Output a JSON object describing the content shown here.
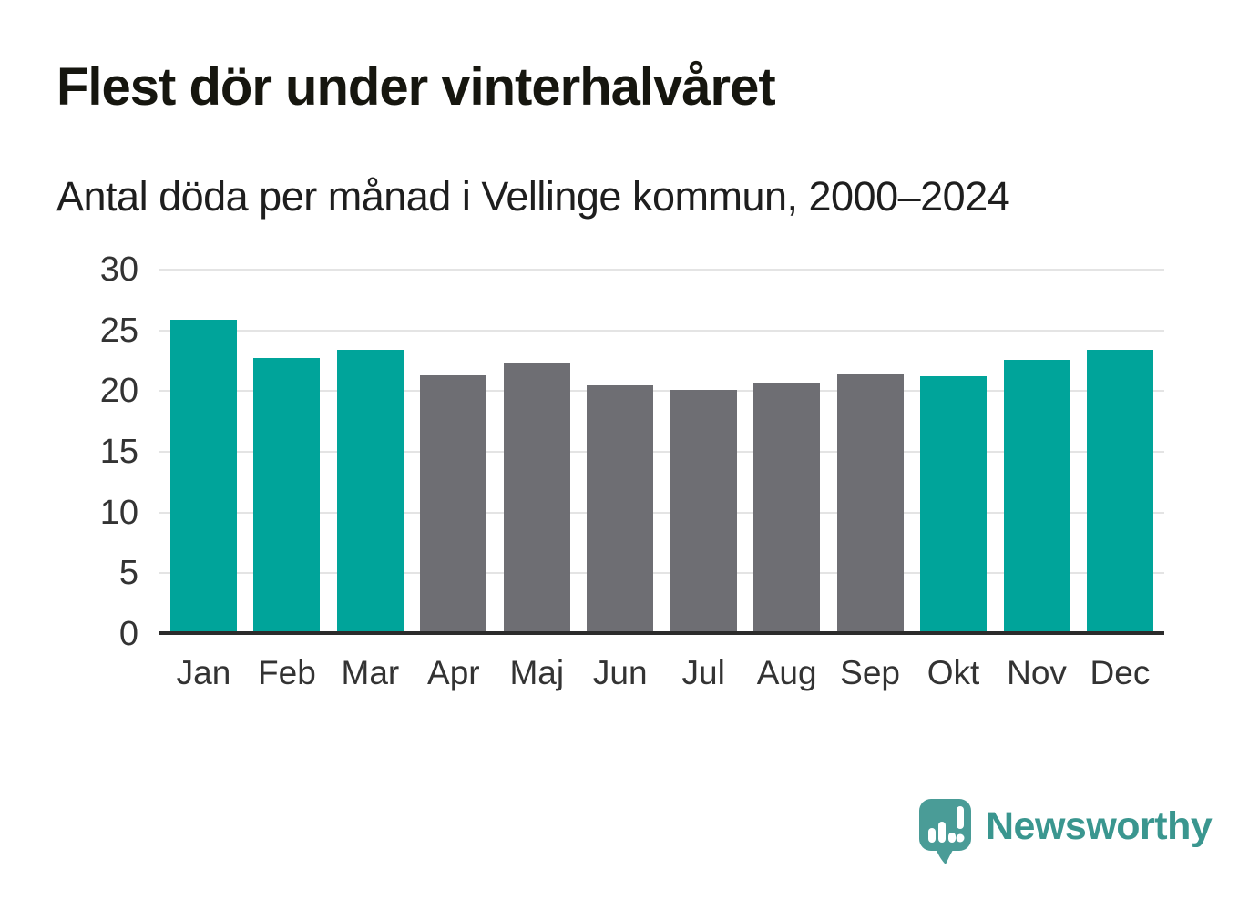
{
  "header": {
    "title": "Flest dör under vinterhalvåret",
    "subtitle": "Antal döda per månad i Vellinge kommun, 2000–2024"
  },
  "chart_data": {
    "type": "bar",
    "title": "Flest dör under vinterhalvåret",
    "subtitle": "Antal döda per månad i Vellinge kommun, 2000–2024",
    "categories": [
      "Jan",
      "Feb",
      "Mar",
      "Apr",
      "Maj",
      "Jun",
      "Jul",
      "Aug",
      "Sep",
      "Okt",
      "Nov",
      "Dec"
    ],
    "values": [
      25.9,
      22.7,
      23.4,
      21.3,
      22.3,
      20.5,
      20.1,
      20.6,
      21.4,
      21.2,
      22.6,
      23.4
    ],
    "highlighted_categories": [
      "Jan",
      "Feb",
      "Mar",
      "Okt",
      "Nov",
      "Dec"
    ],
    "xlabel": "",
    "ylabel": "",
    "ylim": [
      0,
      30
    ],
    "yticks": [
      0,
      5,
      10,
      15,
      20,
      25,
      30
    ],
    "grid": true,
    "legend": "none",
    "colors": {
      "highlight_bar": "#00a49a",
      "base_bar": "#6e6e73",
      "gridline": "#e4e4e4",
      "axis_line": "#2b2b2b",
      "tick_label": "#333333"
    }
  },
  "footer": {
    "brand": "Newsworthy",
    "brand_color": "#3a968f",
    "logo_icon": "newsworthy-speech-bubble-bar-chart-icon",
    "logo_icon_color": "#4a9c97"
  }
}
